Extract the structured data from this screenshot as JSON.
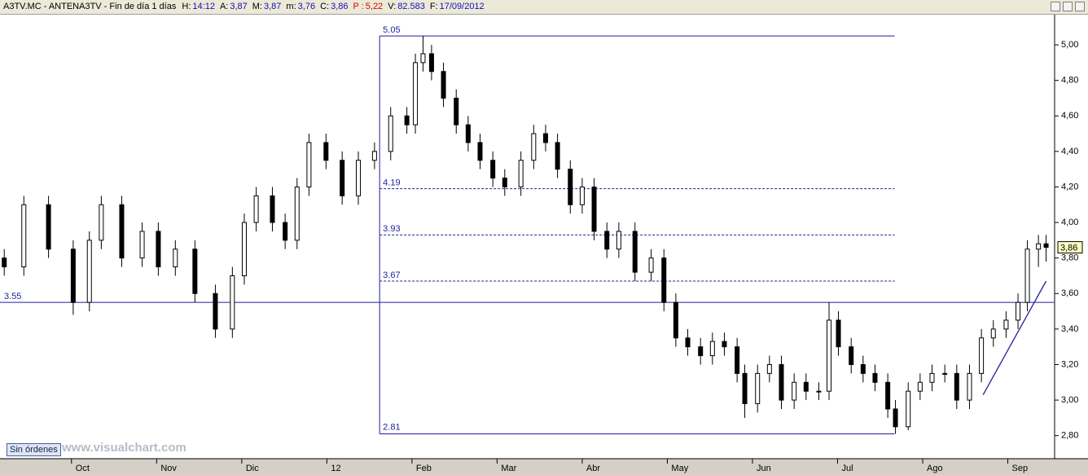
{
  "ui": {
    "title": "A3TV.MC - ANTENA3TV - Fin de día 1 días",
    "fields": [
      {
        "label": "H:",
        "value": "14:12",
        "color": "#1010c0"
      },
      {
        "label": "A:",
        "value": "3,87",
        "color": "#1010c0"
      },
      {
        "label": "M:",
        "value": "3,87",
        "color": "#1010c0"
      },
      {
        "label": "m:",
        "value": "3,76",
        "color": "#1010c0"
      },
      {
        "label": "C:",
        "value": "3,86",
        "color": "#1010c0"
      },
      {
        "label": "P :",
        "value": "5,22",
        "color": "#e00000"
      },
      {
        "label": "V:",
        "value": "82.583",
        "color": "#1010c0"
      },
      {
        "label": "F:",
        "value": "17/09/2012",
        "color": "#1010c0"
      }
    ],
    "button": "Sin órdenes",
    "watermark": "www.visualchart.com"
  },
  "chart_data": {
    "type": "candlestick",
    "up_color": "#ffffff",
    "down_color": "#000000",
    "xlim": [
      -0.84,
      11.55
    ],
    "ylim": [
      2.67,
      5.17
    ],
    "xticks": [
      {
        "value": 0,
        "label": "Oct"
      },
      {
        "value": 1,
        "label": "Nov"
      },
      {
        "value": 2,
        "label": "Dic"
      },
      {
        "value": 3,
        "label": "12"
      },
      {
        "value": 4,
        "label": "Feb"
      },
      {
        "value": 5,
        "label": "Mar"
      },
      {
        "value": 6,
        "label": "Abr"
      },
      {
        "value": 7,
        "label": "May"
      },
      {
        "value": 8,
        "label": "Jun"
      },
      {
        "value": 9,
        "label": "Jul"
      },
      {
        "value": 10,
        "label": "Ago"
      },
      {
        "value": 11,
        "label": "Sep"
      }
    ],
    "yticks": [
      {
        "value": 2.8,
        "label": "2,80"
      },
      {
        "value": 3.0,
        "label": "3,00"
      },
      {
        "value": 3.2,
        "label": "3,20"
      },
      {
        "value": 3.4,
        "label": "3,40"
      },
      {
        "value": 3.6,
        "label": "3,60"
      },
      {
        "value": 3.8,
        "label": "3,80"
      },
      {
        "value": 4.0,
        "label": "4,00"
      },
      {
        "value": 4.2,
        "label": "4,20"
      },
      {
        "value": 4.4,
        "label": "4,40"
      },
      {
        "value": 4.6,
        "label": "4,60"
      },
      {
        "value": 4.8,
        "label": "4,80"
      },
      {
        "value": 5.0,
        "label": "5,00"
      }
    ],
    "x": [
      -0.79,
      -0.56,
      -0.27,
      0.02,
      0.21,
      0.35,
      0.59,
      0.83,
      1.02,
      1.22,
      1.45,
      1.69,
      1.89,
      2.03,
      2.17,
      2.36,
      2.51,
      2.65,
      2.79,
      2.99,
      3.18,
      3.37,
      3.56,
      3.75,
      3.94,
      4.04,
      4.13,
      4.23,
      4.37,
      4.52,
      4.66,
      4.8,
      4.95,
      5.09,
      5.28,
      5.43,
      5.57,
      5.71,
      5.86,
      6.0,
      6.14,
      6.29,
      6.43,
      6.62,
      6.81,
      6.96,
      7.1,
      7.24,
      7.39,
      7.53,
      7.67,
      7.82,
      7.91,
      8.06,
      8.2,
      8.34,
      8.49,
      8.63,
      8.78,
      8.9,
      9.01,
      9.16,
      9.3,
      9.44,
      9.59,
      9.68,
      9.83,
      9.97,
      10.11,
      10.26,
      10.4,
      10.55,
      10.69,
      10.83,
      10.98,
      11.12,
      11.23,
      11.36,
      11.45
    ],
    "open": [
      3.8,
      3.75,
      4.1,
      3.85,
      3.55,
      3.9,
      4.1,
      3.8,
      3.95,
      3.75,
      3.85,
      3.6,
      3.4,
      3.7,
      4.0,
      4.15,
      4.0,
      3.9,
      4.2,
      4.45,
      4.35,
      4.15,
      4.35,
      4.4,
      4.6,
      4.55,
      4.9,
      4.95,
      4.85,
      4.7,
      4.55,
      4.45,
      4.35,
      4.25,
      4.2,
      4.35,
      4.5,
      4.45,
      4.3,
      4.1,
      4.2,
      3.95,
      3.85,
      3.95,
      3.72,
      3.8,
      3.55,
      3.35,
      3.3,
      3.25,
      3.33,
      3.3,
      3.15,
      2.98,
      3.15,
      3.2,
      3.0,
      3.1,
      3.05,
      3.05,
      3.45,
      3.3,
      3.2,
      3.15,
      3.1,
      2.95,
      2.85,
      3.05,
      3.1,
      3.15,
      3.15,
      3.0,
      3.15,
      3.35,
      3.4,
      3.45,
      3.55,
      3.85,
      3.88
    ],
    "high": [
      3.85,
      4.15,
      4.15,
      3.9,
      3.95,
      4.15,
      4.15,
      4.0,
      4.0,
      3.9,
      3.9,
      3.65,
      3.75,
      4.05,
      4.2,
      4.2,
      4.05,
      4.25,
      4.5,
      4.5,
      4.4,
      4.4,
      4.45,
      4.65,
      4.65,
      4.95,
      5.05,
      5.0,
      4.9,
      4.75,
      4.6,
      4.5,
      4.4,
      4.3,
      4.4,
      4.55,
      4.55,
      4.5,
      4.35,
      4.25,
      4.25,
      4.0,
      4.0,
      4.0,
      3.85,
      3.85,
      3.6,
      3.4,
      3.35,
      3.38,
      3.38,
      3.35,
      3.2,
      3.2,
      3.25,
      3.25,
      3.15,
      3.15,
      3.1,
      3.55,
      3.5,
      3.35,
      3.25,
      3.2,
      3.15,
      3.0,
      3.1,
      3.15,
      3.2,
      3.2,
      3.2,
      3.2,
      3.4,
      3.45,
      3.5,
      3.6,
      3.9,
      3.93,
      3.93
    ],
    "low": [
      3.7,
      3.7,
      3.8,
      3.48,
      3.5,
      3.85,
      3.75,
      3.75,
      3.7,
      3.7,
      3.55,
      3.35,
      3.35,
      3.65,
      3.95,
      3.95,
      3.85,
      3.85,
      4.15,
      4.3,
      4.1,
      4.1,
      4.3,
      4.35,
      4.5,
      4.5,
      4.85,
      4.8,
      4.65,
      4.5,
      4.4,
      4.3,
      4.2,
      4.15,
      4.15,
      4.3,
      4.4,
      4.25,
      4.05,
      4.05,
      3.9,
      3.8,
      3.8,
      3.67,
      3.67,
      3.5,
      3.3,
      3.25,
      3.2,
      3.2,
      3.25,
      3.1,
      2.9,
      2.93,
      3.1,
      2.95,
      2.95,
      3.0,
      3.0,
      3.0,
      3.25,
      3.15,
      3.1,
      3.05,
      2.9,
      2.81,
      2.83,
      3.0,
      3.05,
      3.1,
      2.95,
      2.95,
      3.1,
      3.3,
      3.35,
      3.4,
      3.5,
      3.75,
      3.78
    ],
    "close": [
      3.75,
      4.1,
      3.85,
      3.55,
      3.9,
      4.1,
      3.8,
      3.95,
      3.75,
      3.85,
      3.6,
      3.4,
      3.7,
      4.0,
      4.15,
      4.0,
      3.9,
      4.2,
      4.45,
      4.35,
      4.15,
      4.35,
      4.4,
      4.6,
      4.55,
      4.9,
      4.95,
      4.85,
      4.7,
      4.55,
      4.45,
      4.35,
      4.25,
      4.2,
      4.35,
      4.5,
      4.45,
      4.3,
      4.1,
      4.2,
      3.95,
      3.85,
      3.95,
      3.72,
      3.8,
      3.55,
      3.35,
      3.3,
      3.25,
      3.33,
      3.3,
      3.15,
      2.98,
      3.15,
      3.2,
      3.0,
      3.1,
      3.05,
      3.05,
      3.45,
      3.3,
      3.2,
      3.15,
      3.1,
      2.95,
      2.85,
      3.05,
      3.1,
      3.15,
      3.15,
      3.0,
      3.15,
      3.35,
      3.4,
      3.45,
      3.55,
      3.85,
      3.88,
      3.86
    ],
    "last_price": {
      "value": 3.86,
      "label": "3,86"
    },
    "fib": {
      "x": [
        3.62,
        9.67
      ],
      "levels": [
        5.05,
        4.19,
        3.93,
        3.67,
        2.81
      ],
      "color": "#1f1f9e"
    },
    "support": {
      "value": 3.55,
      "color": "#1f1f9e"
    },
    "trendline": {
      "x": [
        10.71,
        11.45
      ],
      "y": [
        3.03,
        3.67
      ],
      "color": "#1f1f9e"
    }
  }
}
